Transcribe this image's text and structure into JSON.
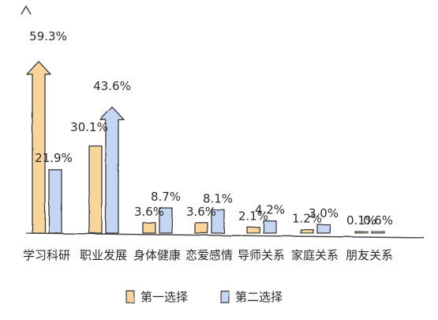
{
  "chart_data": {
    "type": "bar",
    "categories": [
      "学习科研",
      "职业发展",
      "身体健康",
      "恋爱感情",
      "导师关系",
      "家庭关系",
      "朋友关系"
    ],
    "series": [
      {
        "name": "第一选择",
        "values": [
          59.3,
          30.1,
          3.6,
          3.6,
          2.1,
          1.2,
          0.1
        ],
        "labels": [
          "59.3%",
          "30.1%",
          "3.6%",
          "3.6%",
          "2.1%",
          "1.2%",
          "0.1%"
        ]
      },
      {
        "name": "第二选择",
        "values": [
          21.9,
          43.6,
          8.7,
          8.1,
          4.2,
          3.0,
          0.6
        ],
        "labels": [
          "21.9%",
          "43.6%",
          "8.7%",
          "8.1%",
          "4.2%",
          "3.0%",
          "0.6%"
        ]
      }
    ],
    "highlight": [
      "学习科研:第一选择",
      "职业发展:第二选择"
    ],
    "ylim": [
      0,
      70
    ],
    "grid": false,
    "legend_position": "bottom-center",
    "colors": {
      "first": "#f9d59c",
      "second": "#c5d6f5",
      "stroke": "#3a3a3a",
      "axis": "#444444",
      "text": "#2a2a2a"
    }
  }
}
